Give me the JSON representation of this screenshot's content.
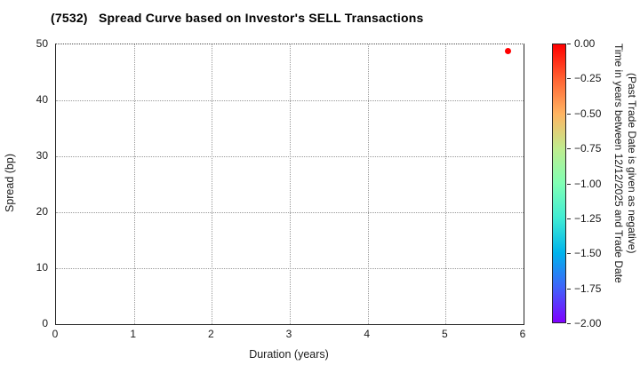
{
  "title": "(7532)   Spread Curve based on Investor's SELL Transactions",
  "chart_data": {
    "type": "scatter",
    "title": "(7532)   Spread Curve based on Investor's SELL Transactions",
    "xlabel": "Duration (years)",
    "ylabel": "Spread (bp)",
    "xlim": [
      0,
      6
    ],
    "ylim": [
      0,
      50
    ],
    "xticks": [
      0,
      1,
      2,
      3,
      4,
      5,
      6
    ],
    "yticks": [
      0,
      10,
      20,
      30,
      40,
      50
    ],
    "grid": true,
    "grid_style": "dotted",
    "points": [
      {
        "duration": 5.8,
        "spread": 48.8,
        "time_value": 0.0,
        "color": "#ff0000"
      }
    ],
    "colorbar": {
      "position": "right",
      "vmin": -2.0,
      "vmax": 0.0,
      "colormap": "rainbow",
      "ticks": [
        "0.00",
        "−0.25",
        "−0.50",
        "−0.75",
        "−1.00",
        "−1.25",
        "−1.50",
        "−1.75",
        "−2.00"
      ],
      "label_line1": "Time in years between 12/12/2025 and Trade Date",
      "label_line2": "(Past Trade Date is given as negative)",
      "gradient_stops": [
        "#ff0000",
        "#ff6232",
        "#ffb462",
        "#bfec8e",
        "#80ffb4",
        "#40ecd4",
        "#00b4ec",
        "#4062fa",
        "#7f00ff"
      ]
    }
  },
  "colors": {
    "marker": "#ff0000",
    "grid": "#999999",
    "spine": "#262626",
    "text": "#1a1a1a"
  }
}
